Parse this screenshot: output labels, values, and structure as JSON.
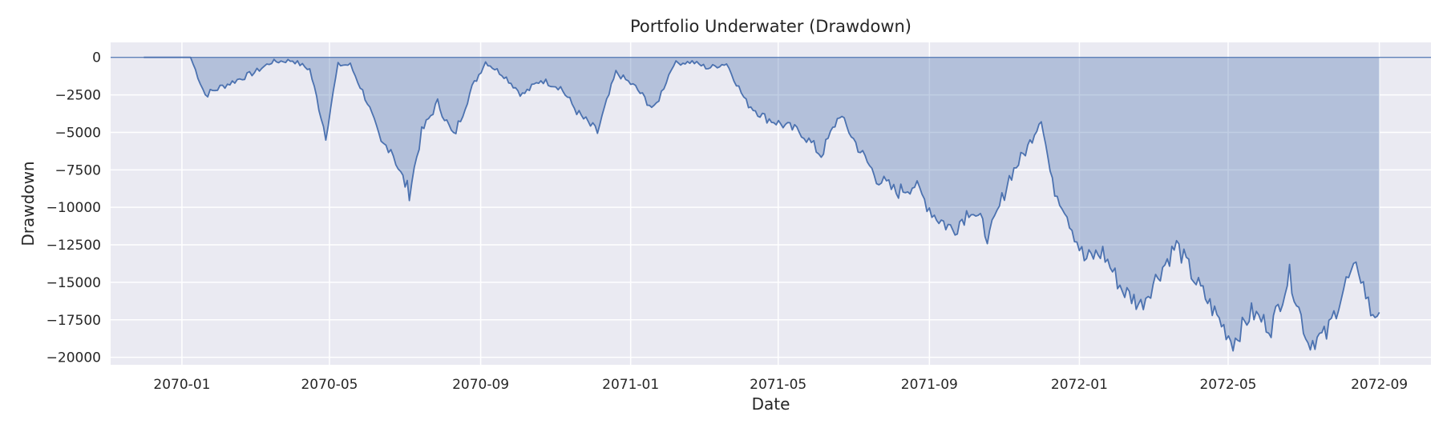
{
  "chart_data": {
    "type": "area",
    "title": "Portfolio Underwater (Drawdown)",
    "xlabel": "Date",
    "ylabel": "Drawdown",
    "xlim": [
      "2069-11-04",
      "2072-10-13"
    ],
    "ylim": [
      -20500,
      1000
    ],
    "grid": true,
    "legend": "none",
    "colors": {
      "line": "#4c72b0",
      "fill": "#4c72b0",
      "background": "#eaeaf2",
      "grid": "#ffffff"
    },
    "y_ticks": [
      0,
      -2500,
      -5000,
      -7500,
      -10000,
      -12500,
      -15000,
      -17500,
      -20000
    ],
    "y_tick_labels": [
      "0",
      "−2500",
      "−5000",
      "−7500",
      "−10000",
      "−12500",
      "−15000",
      "−17500",
      "−20000"
    ],
    "x_ticks": [
      "2070-01-01",
      "2070-05-01",
      "2070-09-01",
      "2071-01-01",
      "2071-05-01",
      "2071-09-01",
      "2072-01-01",
      "2072-05-01",
      "2072-09-01"
    ],
    "x_tick_labels": [
      "2070-01",
      "2070-05",
      "2070-09",
      "2071-01",
      "2071-05",
      "2071-09",
      "2072-01",
      "2072-05",
      "2072-09"
    ],
    "series": [
      {
        "x": [
          "2069-12-01",
          "2070-01-08",
          "2070-01-20",
          "2070-02-01",
          "2070-02-15",
          "2070-03-01",
          "2070-03-15",
          "2070-04-01",
          "2070-04-15",
          "2070-04-28",
          "2070-05-08",
          "2070-05-18",
          "2070-06-01",
          "2070-06-12",
          "2070-06-20",
          "2070-06-28",
          "2070-07-05",
          "2070-07-15",
          "2070-07-28",
          "2070-08-10",
          "2070-08-25",
          "2070-09-05",
          "2070-09-20",
          "2070-10-05",
          "2070-10-20",
          "2070-11-05",
          "2070-11-20",
          "2070-12-05",
          "2070-12-20",
          "2071-01-05",
          "2071-01-20",
          "2071-02-05",
          "2071-02-20",
          "2071-03-05",
          "2071-03-20",
          "2071-04-05",
          "2071-04-20",
          "2071-05-05",
          "2071-05-20",
          "2071-06-05",
          "2071-06-20",
          "2071-07-05",
          "2071-07-20",
          "2071-08-05",
          "2071-08-20",
          "2071-09-05",
          "2071-09-20",
          "2071-10-05",
          "2071-10-20",
          "2071-11-05",
          "2071-11-20",
          "2071-12-01",
          "2071-12-10",
          "2071-12-20",
          "2072-01-05",
          "2072-01-20",
          "2072-02-05",
          "2072-02-20",
          "2072-03-05",
          "2072-03-20",
          "2072-04-05",
          "2072-04-20",
          "2072-05-05",
          "2072-05-20",
          "2072-06-05",
          "2072-06-20",
          "2072-07-05",
          "2072-07-20",
          "2072-08-05",
          "2072-08-15",
          "2072-08-25",
          "2072-09-01"
        ],
        "values": [
          0,
          0,
          -2500,
          -2000,
          -1500,
          -1000,
          -300,
          -200,
          -800,
          -5200,
          -500,
          -500,
          -3000,
          -5800,
          -6000,
          -7800,
          -9000,
          -5000,
          -3000,
          -5300,
          -2000,
          -300,
          -1200,
          -2500,
          -1500,
          -2000,
          -3800,
          -5000,
          -1000,
          -2000,
          -3500,
          -400,
          -300,
          -700,
          -400,
          -3000,
          -4000,
          -4500,
          -5000,
          -6500,
          -3800,
          -6000,
          -8000,
          -9000,
          -8500,
          -10500,
          -11500,
          -10000,
          -12000,
          -8000,
          -6000,
          -4000,
          -8500,
          -10000,
          -13500,
          -13000,
          -15500,
          -16500,
          -14500,
          -12500,
          -15000,
          -17000,
          -19000,
          -17000,
          -18000,
          -14500,
          -19000,
          -18500,
          -15000,
          -14000,
          -17000,
          -17000
        ]
      }
    ]
  }
}
